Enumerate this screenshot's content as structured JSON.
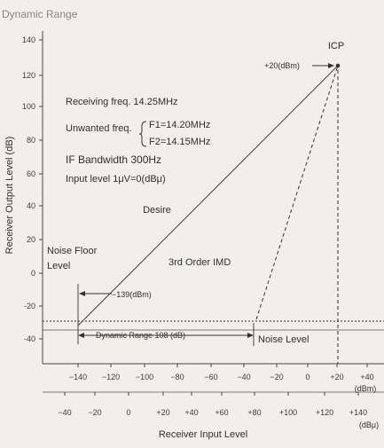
{
  "diagram": {
    "title_partial": "Dynamic Range",
    "y_axis_label": "Receiver Output Level (dB)",
    "y_ticks": [
      "140",
      "120",
      "100",
      "80",
      "60",
      "40",
      "20",
      "0",
      "-20",
      "-40"
    ],
    "top_x_ticks": [
      "−140",
      "−120",
      "−100",
      "−80",
      "−60",
      "−40",
      "−20",
      "0",
      "+20",
      "+40"
    ],
    "top_x_unit": "(dBm)",
    "bottom_x_ticks": [
      "−40",
      "−20",
      "0",
      "+20",
      "+40",
      "+60",
      "+80",
      "+100",
      "+120",
      "+140"
    ],
    "bottom_x_unit": "(dBμ)",
    "x_axis_label": "Receiver Input Level",
    "annotations": {
      "icp": "ICP",
      "icp_value": "+20(dBm)",
      "receiving_freq": "Receiving freq. 14.25MHz",
      "unwanted_freq_label": "Unwanted freq.",
      "unwanted_f1": "F1=14.20MHz",
      "unwanted_f2": "F2=14.15MHz",
      "if_bandwidth": "IF Bandwidth 300Hz",
      "input_level": "Input level 1μV=0(dBμ)",
      "desire": "Desire",
      "noise_floor_line1": "Noise Floor",
      "noise_floor_line2": "Level",
      "third_order_imd": "3rd Order IMD",
      "noise_floor_value": "−139(dBm)",
      "dynamic_range": "Dynamic Range 108 (dB)",
      "noise_level": "Noise Level"
    }
  }
}
